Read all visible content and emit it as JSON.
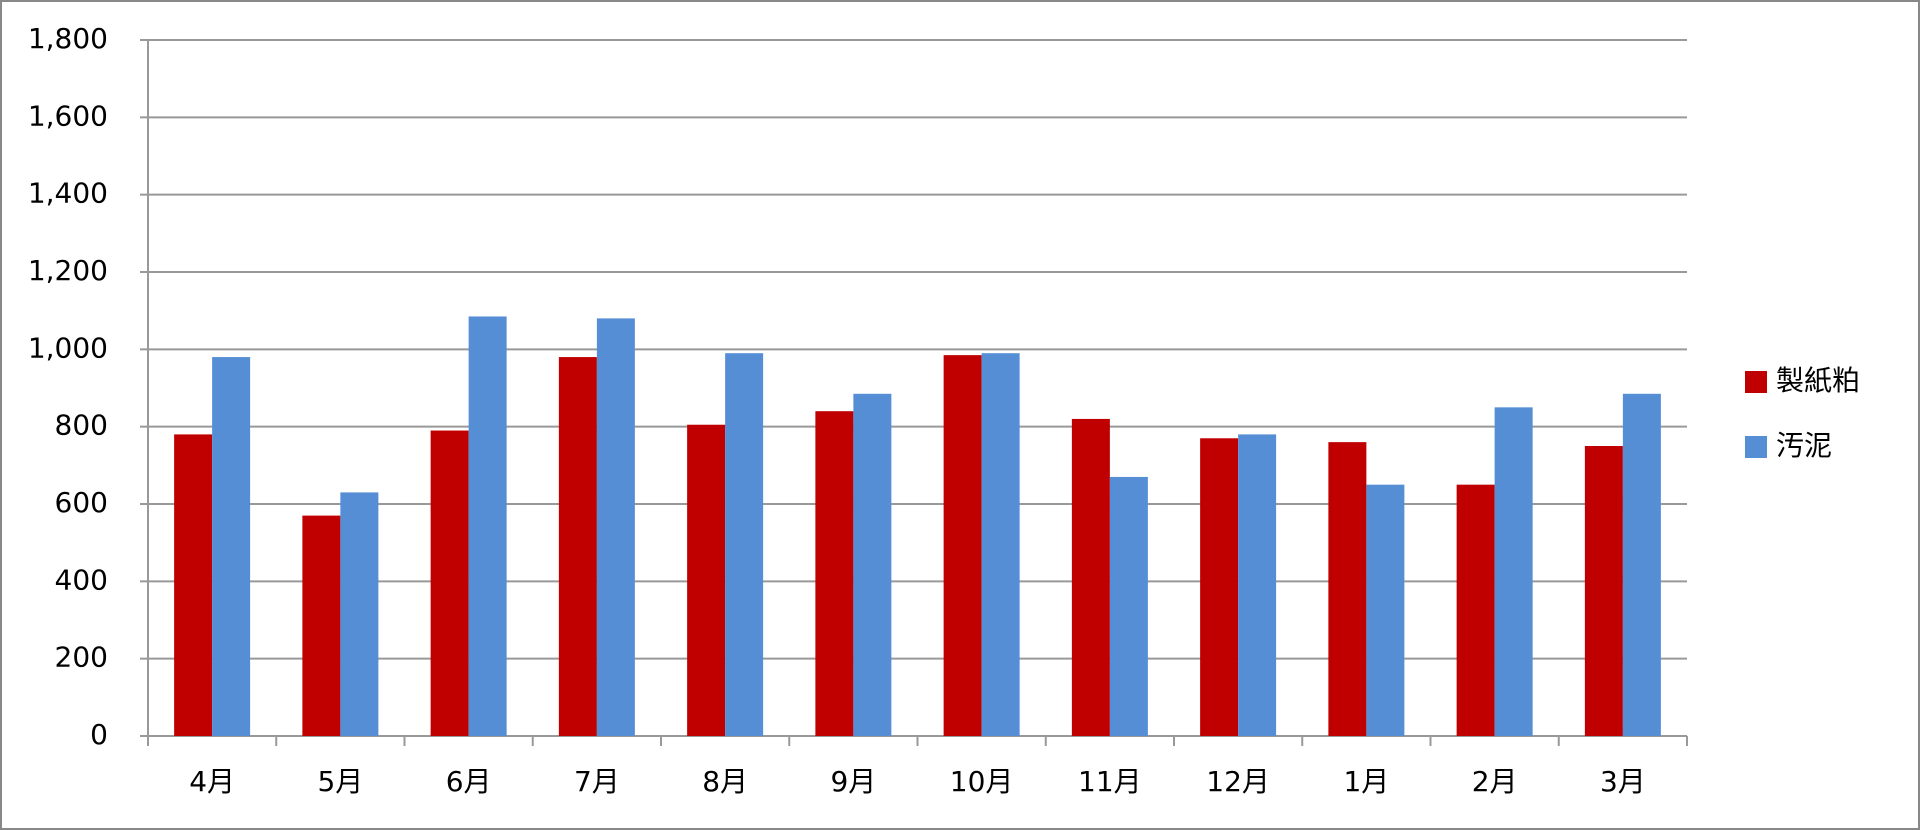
{
  "chart_data": {
    "type": "bar",
    "categories": [
      "4月",
      "5月",
      "6月",
      "7月",
      "8月",
      "9月",
      "10月",
      "11月",
      "12月",
      "1月",
      "2月",
      "3月"
    ],
    "series": [
      {
        "name": "製紙粕",
        "color": "#c00000",
        "values": [
          780,
          570,
          790,
          980,
          805,
          840,
          985,
          820,
          770,
          760,
          650,
          750
        ]
      },
      {
        "name": "汚泥",
        "color": "#558ed5",
        "values": [
          980,
          630,
          1085,
          1080,
          990,
          885,
          990,
          670,
          780,
          650,
          850,
          885
        ]
      }
    ],
    "ylim": [
      0,
      1800
    ],
    "yticks": [
      0,
      200,
      400,
      600,
      800,
      {
        "value": 1000,
        "label": "1,000"
      },
      {
        "value": 1200,
        "label": "1,200"
      },
      {
        "value": 1400,
        "label": "1,400"
      },
      {
        "value": 1600,
        "label": "1,600"
      },
      {
        "value": 1800,
        "label": "1,800"
      }
    ],
    "grid": true,
    "legend": "right"
  }
}
